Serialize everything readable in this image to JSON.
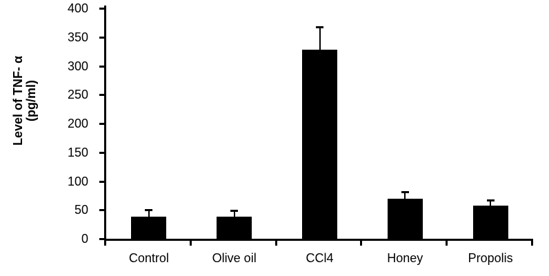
{
  "chart_data": {
    "type": "bar",
    "title": "",
    "categories": [
      "Control",
      "Olive oil",
      "CCl4",
      "Honey",
      "Propolis"
    ],
    "values": [
      38,
      38,
      328,
      70,
      58
    ],
    "error_bars": [
      12,
      11,
      40,
      11,
      9
    ],
    "xlabel": "",
    "ylabel": "Level of TNF- α (pg/ml)",
    "ylabel_lines": [
      "Level of TNF- α",
      "(pg/ml)"
    ],
    "ylim": [
      0,
      400
    ],
    "yticks": [
      0,
      50,
      100,
      150,
      200,
      250,
      300,
      350,
      400
    ],
    "bar_color": "#000000",
    "axis_color": "#000000",
    "text_color": "#000000",
    "background_color": "#ffffff",
    "grid": false,
    "legend": "none",
    "error_bar_direction": "upper"
  }
}
